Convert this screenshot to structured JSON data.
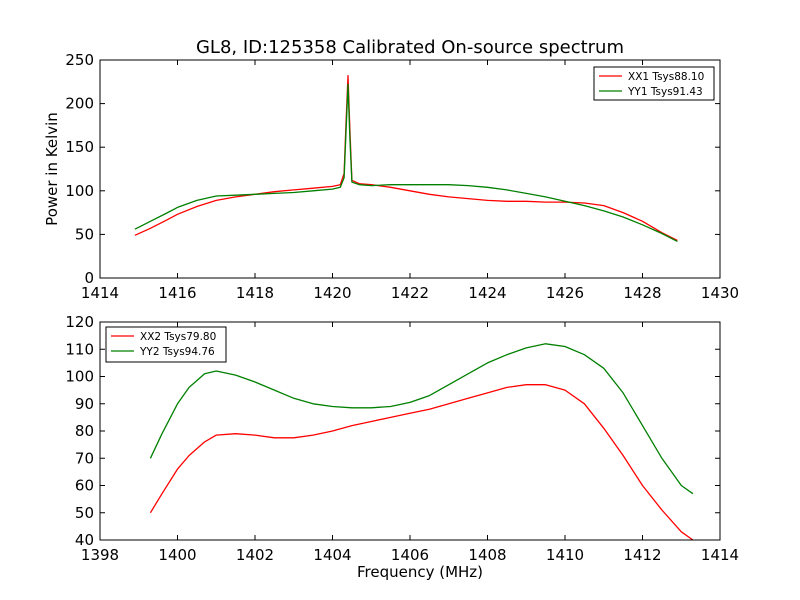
{
  "figure": {
    "title": "GL8, ID:125358 Calibrated On-source spectrum"
  },
  "chart_data": [
    {
      "type": "line",
      "title": "GL8, ID:125358 Calibrated On-source spectrum",
      "xlabel": "",
      "ylabel": "Power in Kelvin",
      "xlim": [
        1414,
        1430
      ],
      "ylim": [
        0,
        250
      ],
      "xticks": [
        "1414",
        "1416",
        "1418",
        "1420",
        "1422",
        "1424",
        "1426",
        "1428",
        "1430"
      ],
      "yticks": [
        "0",
        "50",
        "100",
        "150",
        "200",
        "250"
      ],
      "grid": false,
      "legend_position": "top-right",
      "series": [
        {
          "name": "XX1 Tsys88.10",
          "color": "#ff0000",
          "x": [
            1414.9,
            1415.3,
            1415.7,
            1416.0,
            1416.5,
            1417.0,
            1417.5,
            1418.0,
            1418.5,
            1419.0,
            1419.5,
            1420.0,
            1420.2,
            1420.3,
            1420.35,
            1420.4,
            1420.45,
            1420.5,
            1420.7,
            1421.0,
            1421.5,
            1422.0,
            1422.5,
            1423.0,
            1423.5,
            1424.0,
            1424.5,
            1425.0,
            1425.5,
            1426.0,
            1426.5,
            1427.0,
            1427.5,
            1428.0,
            1428.5,
            1428.9
          ],
          "y": [
            49,
            57,
            66,
            73,
            82,
            89,
            93,
            96,
            99,
            101,
            103,
            105,
            107,
            120,
            180,
            232,
            170,
            112,
            108,
            107,
            104,
            100,
            96,
            93,
            91,
            89,
            88,
            88,
            87,
            87,
            86,
            83,
            75,
            65,
            52,
            43
          ]
        },
        {
          "name": "YY1 Tsys91.43",
          "color": "#008000",
          "x": [
            1414.9,
            1415.3,
            1415.7,
            1416.0,
            1416.5,
            1417.0,
            1417.5,
            1418.0,
            1418.5,
            1419.0,
            1419.5,
            1420.0,
            1420.2,
            1420.3,
            1420.35,
            1420.4,
            1420.45,
            1420.5,
            1420.7,
            1421.0,
            1421.5,
            1422.0,
            1422.5,
            1423.0,
            1423.5,
            1424.0,
            1424.5,
            1425.0,
            1425.5,
            1426.0,
            1426.5,
            1427.0,
            1427.5,
            1428.0,
            1428.5,
            1428.9
          ],
          "y": [
            56,
            65,
            74,
            81,
            89,
            94,
            95,
            96,
            97,
            98,
            100,
            102,
            104,
            115,
            170,
            222,
            160,
            110,
            107,
            106,
            107,
            107,
            107,
            107,
            106,
            104,
            101,
            97,
            93,
            88,
            83,
            77,
            70,
            61,
            51,
            42
          ]
        }
      ]
    },
    {
      "type": "line",
      "title": "",
      "xlabel": "Frequency (MHz)",
      "ylabel": "",
      "xlim": [
        1398,
        1414
      ],
      "ylim": [
        40,
        120
      ],
      "xticks": [
        "1398",
        "1400",
        "1402",
        "1404",
        "1406",
        "1408",
        "1410",
        "1412",
        "1414"
      ],
      "yticks": [
        "40",
        "50",
        "60",
        "70",
        "80",
        "90",
        "100",
        "110",
        "120"
      ],
      "grid": false,
      "legend_position": "top-left",
      "series": [
        {
          "name": "XX2 Tsys79.80",
          "color": "#ff0000",
          "x": [
            1399.3,
            1399.6,
            1400.0,
            1400.3,
            1400.7,
            1401.0,
            1401.5,
            1402.0,
            1402.5,
            1403.0,
            1403.5,
            1404.0,
            1404.5,
            1405.0,
            1405.5,
            1406.0,
            1406.5,
            1407.0,
            1407.5,
            1408.0,
            1408.5,
            1409.0,
            1409.5,
            1410.0,
            1410.5,
            1411.0,
            1411.5,
            1412.0,
            1412.5,
            1413.0,
            1413.3
          ],
          "y": [
            50,
            57,
            66,
            71,
            76,
            78.5,
            79,
            78.5,
            77.5,
            77.5,
            78.5,
            80,
            82,
            83.5,
            85,
            86.5,
            88,
            90,
            92,
            94,
            96,
            97,
            97,
            95,
            90,
            81,
            71,
            60,
            51,
            43,
            40
          ]
        },
        {
          "name": "YY2 Tsys94.76",
          "color": "#008000",
          "x": [
            1399.3,
            1399.6,
            1400.0,
            1400.3,
            1400.7,
            1401.0,
            1401.5,
            1402.0,
            1402.5,
            1403.0,
            1403.5,
            1404.0,
            1404.5,
            1405.0,
            1405.5,
            1406.0,
            1406.5,
            1407.0,
            1407.5,
            1408.0,
            1408.5,
            1409.0,
            1409.5,
            1410.0,
            1410.5,
            1411.0,
            1411.5,
            1412.0,
            1412.5,
            1413.0,
            1413.3
          ],
          "y": [
            70,
            79,
            90,
            96,
            101,
            102,
            100.5,
            98,
            95,
            92,
            90,
            89,
            88.5,
            88.5,
            89,
            90.5,
            93,
            97,
            101,
            105,
            108,
            110.5,
            112,
            111,
            108,
            103,
            94,
            82,
            70,
            60,
            57
          ]
        }
      ]
    }
  ]
}
